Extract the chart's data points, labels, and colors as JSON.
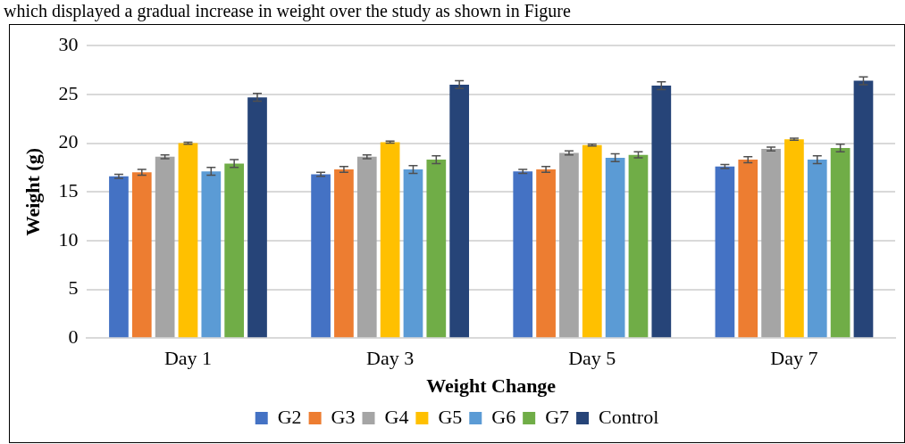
{
  "chart_data": {
    "type": "bar",
    "xlabel": "Weight Change",
    "ylabel": "Weight (g)",
    "annotations": [
      "which displayed a gradual increase in weight over the study as shown in Figure"
    ],
    "categories": [
      "Day 1",
      "Day 3",
      "Day 5",
      "Day 7"
    ],
    "series": [
      {
        "name": "G2",
        "color": "#4472c4",
        "values": [
          16.6,
          16.8,
          17.1,
          17.6
        ],
        "errors": [
          0.2,
          0.2,
          0.2,
          0.2
        ]
      },
      {
        "name": "G3",
        "color": "#ed7d31",
        "values": [
          17.0,
          17.3,
          17.3,
          18.3
        ],
        "errors": [
          0.3,
          0.3,
          0.3,
          0.3
        ]
      },
      {
        "name": "G4",
        "color": "#a5a5a5",
        "values": [
          18.6,
          18.6,
          19.0,
          19.4
        ],
        "errors": [
          0.2,
          0.2,
          0.2,
          0.2
        ]
      },
      {
        "name": "G5",
        "color": "#ffc000",
        "values": [
          20.0,
          20.1,
          19.8,
          20.4
        ],
        "errors": [
          0.1,
          0.1,
          0.1,
          0.1
        ]
      },
      {
        "name": "G6",
        "color": "#5b9bd5",
        "values": [
          17.1,
          17.3,
          18.5,
          18.3
        ],
        "errors": [
          0.4,
          0.4,
          0.4,
          0.4
        ]
      },
      {
        "name": "G7",
        "color": "#70ad47",
        "values": [
          17.9,
          18.3,
          18.8,
          19.5
        ],
        "errors": [
          0.4,
          0.4,
          0.3,
          0.4
        ]
      },
      {
        "name": "Control",
        "color": "#264478",
        "values": [
          24.7,
          26.0,
          25.9,
          26.4
        ],
        "errors": [
          0.4,
          0.4,
          0.4,
          0.4
        ]
      }
    ],
    "ylim": [
      0,
      30
    ],
    "yticks": [
      0,
      5,
      10,
      15,
      20,
      25,
      30
    ],
    "grid": "y",
    "legend": "bottom"
  }
}
